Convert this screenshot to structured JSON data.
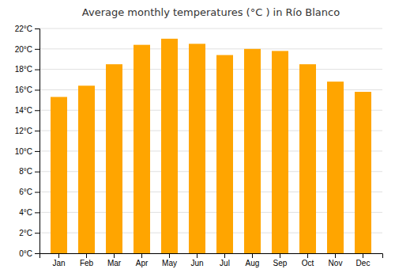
{
  "chart_data": {
    "type": "bar",
    "title": "Average monthly temperatures (°C ) in Río Blanco",
    "categories": [
      "Jan",
      "Feb",
      "Mar",
      "Apr",
      "May",
      "Jun",
      "Jul",
      "Aug",
      "Sep",
      "Oct",
      "Nov",
      "Dec"
    ],
    "values": [
      15.3,
      16.4,
      18.5,
      20.4,
      21.0,
      20.5,
      19.4,
      20.0,
      19.8,
      18.5,
      16.8,
      15.8
    ],
    "color": "#FFA500",
    "ylim": [
      0,
      22
    ],
    "yticks": [
      {
        "value": 0,
        "label": "0°C"
      },
      {
        "value": 2,
        "label": "2°C"
      },
      {
        "value": 4,
        "label": "4°C"
      },
      {
        "value": 6,
        "label": "6°C"
      },
      {
        "value": 8,
        "label": "8°C"
      },
      {
        "value": 10,
        "label": "10°C"
      },
      {
        "value": 12,
        "label": "12°C"
      },
      {
        "value": 14,
        "label": "14°C"
      },
      {
        "value": 16,
        "label": "16°C"
      },
      {
        "value": 18,
        "label": "18°C"
      },
      {
        "value": 20,
        "label": "20°C"
      },
      {
        "value": 22,
        "label": "22°C"
      }
    ],
    "grid": true
  }
}
